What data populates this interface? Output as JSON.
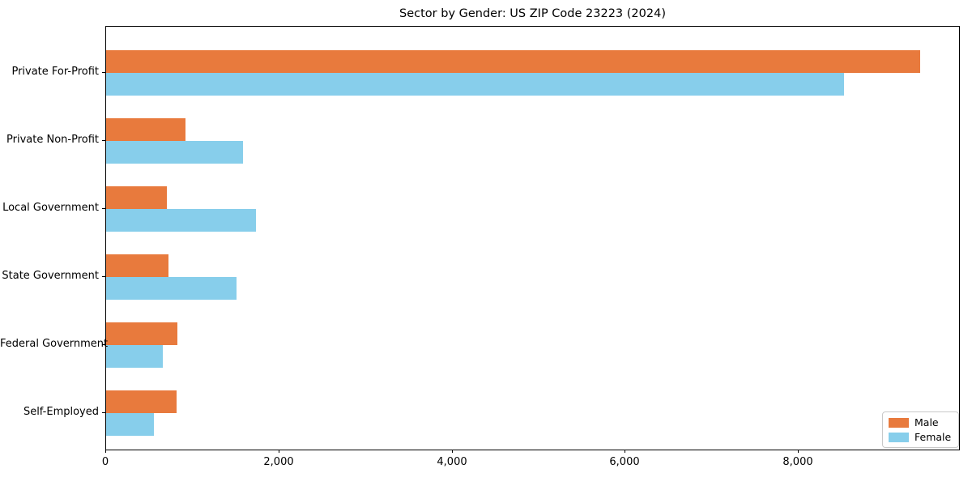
{
  "title": "Sector by Gender: US ZIP Code 23223 (2024)",
  "chart_data": {
    "type": "bar",
    "orientation": "horizontal",
    "title": "Sector by Gender: US ZIP Code 23223 (2024)",
    "xlabel": "",
    "ylabel": "",
    "categories": [
      "Private For-Profit",
      "Private Non-Profit",
      "Local Government",
      "State Government",
      "Federal Government",
      "Self-Employed"
    ],
    "series": [
      {
        "name": "Male",
        "color": "#e87a3d",
        "values": [
          9400,
          915,
          705,
          725,
          820,
          810
        ]
      },
      {
        "name": "Female",
        "color": "#87ceeb",
        "values": [
          8520,
          1580,
          1735,
          1510,
          655,
          550
        ]
      }
    ],
    "xlim": [
      0,
      9870
    ],
    "xticks": [
      0,
      2000,
      4000,
      6000,
      8000
    ],
    "xtick_labels": [
      "0",
      "2,000",
      "4,000",
      "6,000",
      "8,000"
    ],
    "grid": false,
    "legend_position": "lower right",
    "background_color": "#ffffff",
    "axis_color": "#000000"
  },
  "legend": {
    "items": [
      {
        "label": "Male",
        "color": "#e87a3d"
      },
      {
        "label": "Female",
        "color": "#87ceeb"
      }
    ]
  }
}
